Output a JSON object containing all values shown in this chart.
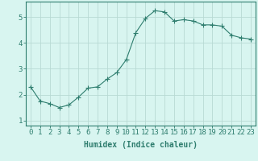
{
  "x": [
    0,
    1,
    2,
    3,
    4,
    5,
    6,
    7,
    8,
    9,
    10,
    11,
    12,
    13,
    14,
    15,
    16,
    17,
    18,
    19,
    20,
    21,
    22,
    23
  ],
  "y": [
    2.3,
    1.75,
    1.65,
    1.5,
    1.6,
    1.9,
    2.25,
    2.3,
    2.6,
    2.85,
    3.35,
    4.4,
    4.95,
    5.25,
    5.2,
    4.85,
    4.9,
    4.85,
    4.7,
    4.7,
    4.65,
    4.3,
    4.2,
    4.15
  ],
  "line_color": "#2e7d6e",
  "marker": "+",
  "marker_size": 4,
  "background_color": "#d8f5f0",
  "grid_color": "#b8dad4",
  "xlabel": "Humidex (Indice chaleur)",
  "ylabel": "",
  "xlim": [
    -0.5,
    23.5
  ],
  "ylim": [
    0.8,
    5.6
  ],
  "yticks": [
    1,
    2,
    3,
    4,
    5
  ],
  "xtick_labels": [
    "0",
    "1",
    "2",
    "3",
    "4",
    "5",
    "6",
    "7",
    "8",
    "9",
    "10",
    "11",
    "12",
    "13",
    "14",
    "15",
    "16",
    "17",
    "18",
    "19",
    "20",
    "21",
    "22",
    "23"
  ],
  "xlabel_fontsize": 7,
  "tick_fontsize": 6.5,
  "tick_color": "#2e7d6e",
  "axis_color": "#2e7d6e"
}
